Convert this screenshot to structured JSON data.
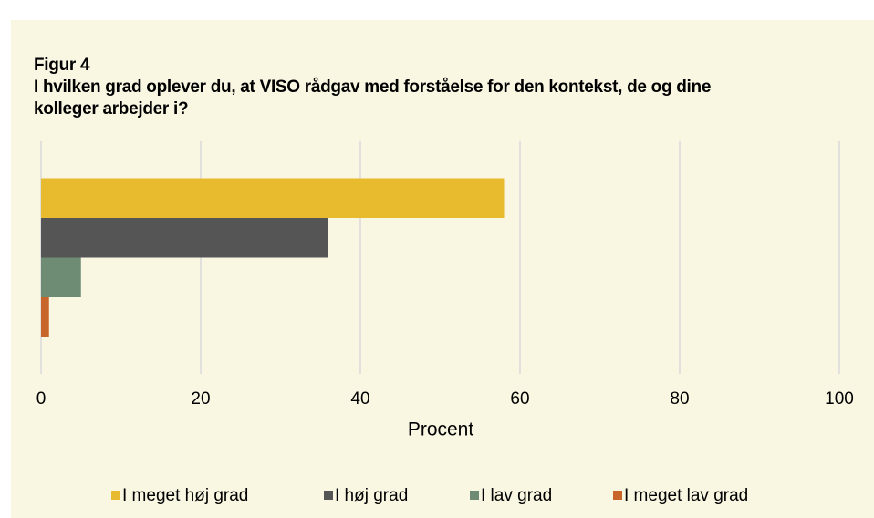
{
  "chart_data": {
    "type": "barh",
    "title": "Figur 4",
    "subtitle": "I hvilken grad oplever du, at VISO rådgav med forståelse for den kontekst, de og dine kolleger arbejder i?",
    "xlabel": "Procent",
    "categories": [
      null
    ],
    "series": [
      {
        "name": "I meget høj grad",
        "color": "#e8bb2e",
        "values": [
          58
        ]
      },
      {
        "name": "I høj grad",
        "color": "#555555",
        "values": [
          36
        ]
      },
      {
        "name": "I lav grad",
        "color": "#6e8b74",
        "values": [
          5
        ]
      },
      {
        "name": "I meget lav grad",
        "color": "#c8652a",
        "values": [
          1
        ]
      }
    ],
    "xlim": [
      0,
      100
    ],
    "xticks": [
      0,
      20,
      40,
      60,
      80,
      100
    ],
    "grid": true,
    "legend": "bottom"
  }
}
